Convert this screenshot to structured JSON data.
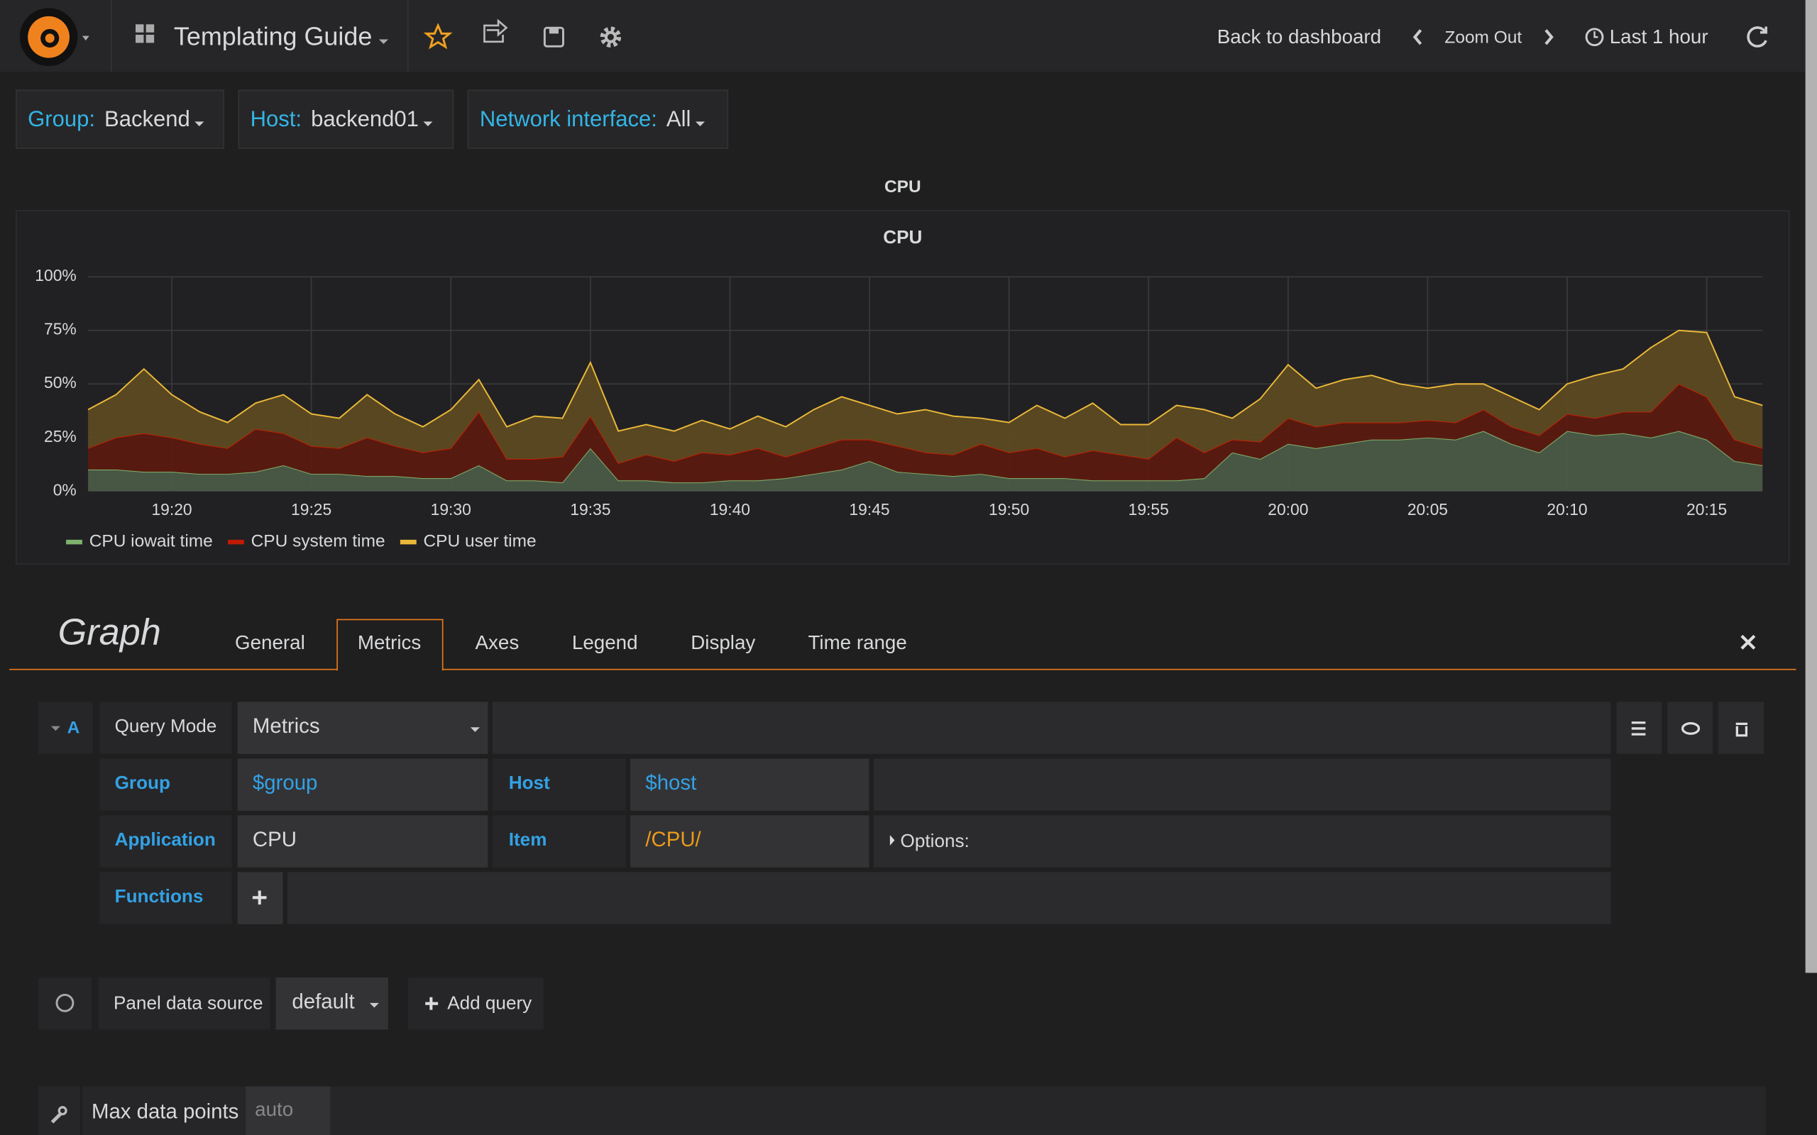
{
  "navbar": {
    "title": "Templating Guide",
    "back": "Back to dashboard",
    "zoom": "Zoom Out",
    "time_range": "Last 1 hour"
  },
  "variables": [
    {
      "label": "Group:",
      "value": "Backend"
    },
    {
      "label": "Host:",
      "value": "backend01"
    },
    {
      "label": "Network interface:",
      "value": "All"
    }
  ],
  "row_title": "CPU",
  "chart_data": {
    "type": "area",
    "title": "CPU",
    "stacked": true,
    "grid": true,
    "x": [
      "19:17",
      "19:18",
      "19:19",
      "19:20",
      "19:21",
      "19:22",
      "19:23",
      "19:24",
      "19:25",
      "19:26",
      "19:27",
      "19:28",
      "19:29",
      "19:30",
      "19:31",
      "19:32",
      "19:33",
      "19:34",
      "19:35",
      "19:36",
      "19:37",
      "19:38",
      "19:39",
      "19:40",
      "19:41",
      "19:42",
      "19:43",
      "19:44",
      "19:45",
      "19:46",
      "19:47",
      "19:48",
      "19:49",
      "19:50",
      "19:51",
      "19:52",
      "19:53",
      "19:54",
      "19:55",
      "19:56",
      "19:57",
      "19:58",
      "19:59",
      "20:00",
      "20:01",
      "20:02",
      "20:03",
      "20:04",
      "20:05",
      "20:06",
      "20:07",
      "20:08",
      "20:09",
      "20:10",
      "20:11",
      "20:12",
      "20:13",
      "20:14",
      "20:15",
      "20:16",
      "20:17"
    ],
    "series": [
      {
        "name": "CPU iowait time",
        "color": "#7eb26d",
        "fill": "#4b5a47",
        "values": [
          10,
          10,
          9,
          9,
          8,
          8,
          9,
          12,
          8,
          8,
          7,
          7,
          6,
          6,
          12,
          5,
          5,
          4,
          20,
          5,
          5,
          4,
          4,
          5,
          5,
          6,
          8,
          10,
          14,
          9,
          8,
          7,
          8,
          6,
          6,
          6,
          5,
          5,
          5,
          5,
          6,
          18,
          15,
          22,
          20,
          22,
          24,
          24,
          25,
          24,
          28,
          22,
          18,
          28,
          26,
          27,
          25,
          28,
          24,
          14,
          12
        ]
      },
      {
        "name": "CPU system time",
        "color": "#bf1b00",
        "fill": "#5a1a10",
        "values": [
          10,
          15,
          18,
          16,
          14,
          12,
          20,
          15,
          13,
          12,
          18,
          14,
          12,
          14,
          25,
          10,
          10,
          12,
          15,
          8,
          12,
          10,
          14,
          12,
          15,
          10,
          12,
          14,
          10,
          12,
          10,
          10,
          14,
          12,
          14,
          10,
          14,
          12,
          10,
          20,
          12,
          6,
          8,
          12,
          10,
          10,
          8,
          8,
          8,
          8,
          10,
          8,
          8,
          8,
          8,
          10,
          12,
          22,
          20,
          10,
          8
        ]
      },
      {
        "name": "CPU user time",
        "color": "#eab839",
        "fill": "#5c4a22",
        "values": [
          18,
          20,
          30,
          20,
          15,
          12,
          12,
          18,
          15,
          14,
          20,
          15,
          12,
          18,
          15,
          15,
          20,
          18,
          25,
          15,
          14,
          14,
          15,
          12,
          15,
          14,
          18,
          20,
          16,
          15,
          20,
          18,
          12,
          14,
          20,
          18,
          22,
          14,
          16,
          15,
          20,
          10,
          20,
          25,
          18,
          20,
          22,
          18,
          15,
          18,
          12,
          14,
          12,
          14,
          20,
          20,
          30,
          25,
          30,
          20,
          20
        ]
      }
    ],
    "ylim": [
      0,
      100
    ],
    "yticks": [
      {
        "value": 0,
        "label": "0%"
      },
      {
        "value": 25,
        "label": "25%"
      },
      {
        "value": 50,
        "label": "50%"
      },
      {
        "value": 75,
        "label": "75%"
      },
      {
        "value": 100,
        "label": "100%"
      }
    ],
    "xticks": [
      "19:20",
      "19:25",
      "19:30",
      "19:35",
      "19:40",
      "19:45",
      "19:50",
      "19:55",
      "20:00",
      "20:05",
      "20:10",
      "20:15"
    ]
  },
  "editor": {
    "title": "Graph",
    "tabs": [
      "General",
      "Metrics",
      "Axes",
      "Legend",
      "Display",
      "Time range"
    ],
    "active_tab": 1,
    "query": {
      "ref": "A",
      "mode_label": "Query Mode",
      "mode": "Metrics",
      "group_label": "Group",
      "group": "$group",
      "host_label": "Host",
      "host": "$host",
      "app_label": "Application",
      "app": "CPU",
      "item_label": "Item",
      "item": "/CPU/",
      "options": "Options:",
      "functions_label": "Functions"
    },
    "datasource_label": "Panel data source",
    "datasource": "default",
    "add_query": "Add query",
    "max_points_label": "Max data points",
    "max_points": "auto"
  }
}
